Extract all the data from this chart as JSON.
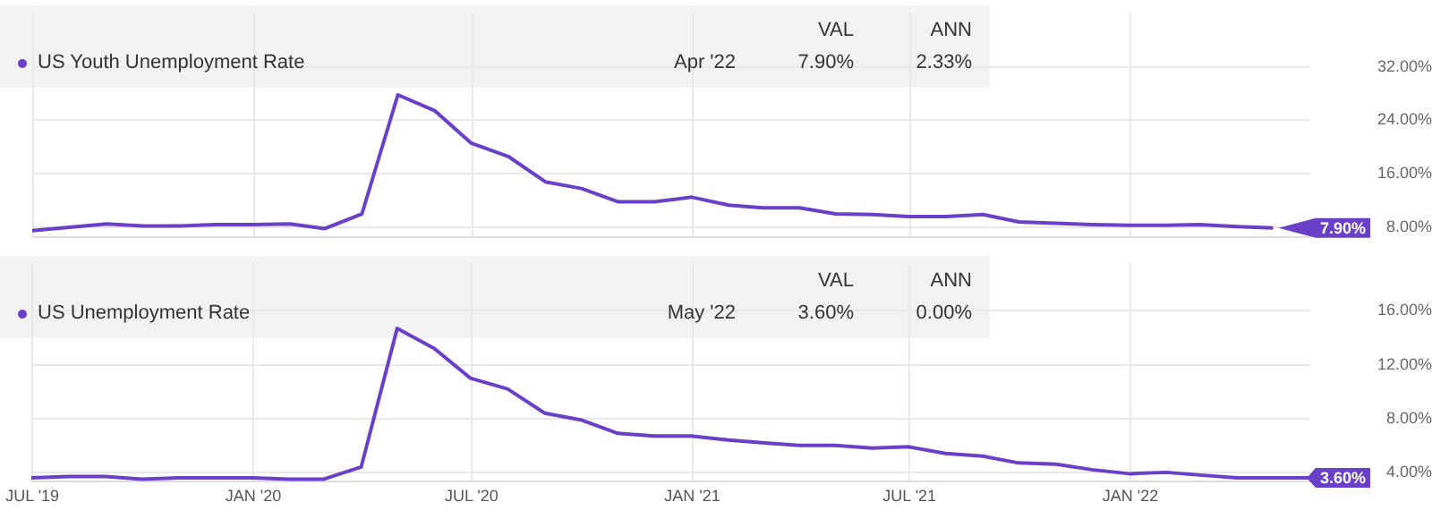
{
  "chart_data": [
    {
      "type": "line",
      "x": [
        "2019-06-30",
        "2019-07-31",
        "2019-08-31",
        "2019-09-30",
        "2019-10-31",
        "2019-11-30",
        "2019-12-31",
        "2020-01-31",
        "2020-02-29",
        "2020-03-31",
        "2020-04-30",
        "2020-05-31",
        "2020-06-30",
        "2020-07-31",
        "2020-08-31",
        "2020-09-30",
        "2020-10-31",
        "2020-11-30",
        "2020-12-31",
        "2021-01-31",
        "2021-02-28",
        "2021-03-31",
        "2021-04-30",
        "2021-05-31",
        "2021-06-30",
        "2021-07-31",
        "2021-08-31",
        "2021-09-30",
        "2021-10-31",
        "2021-11-30",
        "2021-12-31",
        "2022-01-31",
        "2022-02-28",
        "2022-03-31",
        "2022-04-30"
      ],
      "series": [
        {
          "name": "US Youth Unemployment Rate",
          "color": "#6a40c8",
          "values": [
            7.5,
            8.0,
            8.5,
            8.2,
            8.2,
            8.4,
            8.4,
            8.5,
            7.8,
            10.0,
            27.8,
            25.4,
            20.6,
            18.6,
            14.8,
            13.8,
            11.8,
            11.8,
            12.5,
            11.3,
            10.9,
            10.9,
            10.0,
            9.9,
            9.6,
            9.6,
            9.9,
            8.8,
            8.6,
            8.4,
            8.3,
            8.3,
            8.4,
            8.1,
            7.9
          ]
        }
      ],
      "xlim": [
        "2019-06-30",
        "2022-05-31"
      ],
      "xticks": [
        {
          "value": "2019-07-01",
          "label": null
        },
        {
          "value": "2020-01-01",
          "label": null
        },
        {
          "value": "2020-07-01",
          "label": null
        },
        {
          "value": "2021-01-01",
          "label": null
        },
        {
          "value": "2021-07-01",
          "label": null
        },
        {
          "value": "2022-01-01",
          "label": null
        }
      ],
      "ylim": [
        6.5,
        40
      ],
      "yticks": [
        {
          "value": 8,
          "label": "8.00%"
        },
        {
          "value": 16,
          "label": "16.00%"
        },
        {
          "value": 24,
          "label": "24.00%"
        },
        {
          "value": 32,
          "label": "32.00%"
        }
      ],
      "grid": true,
      "legend": "top left",
      "tick_labels": "y",
      "annotations": [
        "VAL",
        "ANN",
        "Apr '22",
        "7.90%",
        "2.33%",
        {
          "text": "7.90%",
          "x": "2022-04-30",
          "y": 7.9
        }
      ]
    },
    {
      "type": "line",
      "x": [
        "2019-06-30",
        "2019-07-31",
        "2019-08-31",
        "2019-09-30",
        "2019-10-31",
        "2019-11-30",
        "2019-12-31",
        "2020-01-31",
        "2020-02-29",
        "2020-03-31",
        "2020-04-30",
        "2020-05-31",
        "2020-06-30",
        "2020-07-31",
        "2020-08-31",
        "2020-09-30",
        "2020-10-31",
        "2020-11-30",
        "2020-12-31",
        "2021-01-31",
        "2021-02-28",
        "2021-03-31",
        "2021-04-30",
        "2021-05-31",
        "2021-06-30",
        "2021-07-31",
        "2021-08-31",
        "2021-09-30",
        "2021-10-31",
        "2021-11-30",
        "2021-12-31",
        "2022-01-31",
        "2022-02-28",
        "2022-03-31",
        "2022-04-30",
        "2022-05-31"
      ],
      "series": [
        {
          "name": "US Unemployment Rate",
          "color": "#6a40c8",
          "values": [
            3.6,
            3.7,
            3.7,
            3.5,
            3.6,
            3.6,
            3.6,
            3.5,
            3.5,
            4.4,
            14.7,
            13.2,
            11.0,
            10.2,
            8.4,
            7.9,
            6.9,
            6.7,
            6.7,
            6.4,
            6.2,
            6.0,
            6.0,
            5.8,
            5.9,
            5.4,
            5.2,
            4.7,
            4.6,
            4.2,
            3.9,
            4.0,
            3.8,
            3.6,
            3.6,
            3.6
          ]
        }
      ],
      "xlim": [
        "2019-06-30",
        "2022-05-31"
      ],
      "xticks": [
        {
          "value": "2019-07-01",
          "label": "JUL '19"
        },
        {
          "value": "2020-01-01",
          "label": "JAN '20"
        },
        {
          "value": "2020-07-01",
          "label": "JUL '20"
        },
        {
          "value": "2021-01-01",
          "label": "JAN '21"
        },
        {
          "value": "2021-07-01",
          "label": "JUL '21"
        },
        {
          "value": "2022-01-01",
          "label": "JAN '22"
        }
      ],
      "ylim": [
        3.3,
        19.5
      ],
      "yticks": [
        {
          "value": 4,
          "label": "4.00%"
        },
        {
          "value": 8,
          "label": "8.00%"
        },
        {
          "value": 12,
          "label": "12.00%"
        },
        {
          "value": 16,
          "label": "16.00%"
        }
      ],
      "grid": true,
      "legend": "top left",
      "annotations": [
        "VAL",
        "ANN",
        "May '22",
        "3.60%",
        "0.00%",
        {
          "text": "3.60%",
          "x": "2022-05-31",
          "y": 3.6
        }
      ]
    }
  ]
}
